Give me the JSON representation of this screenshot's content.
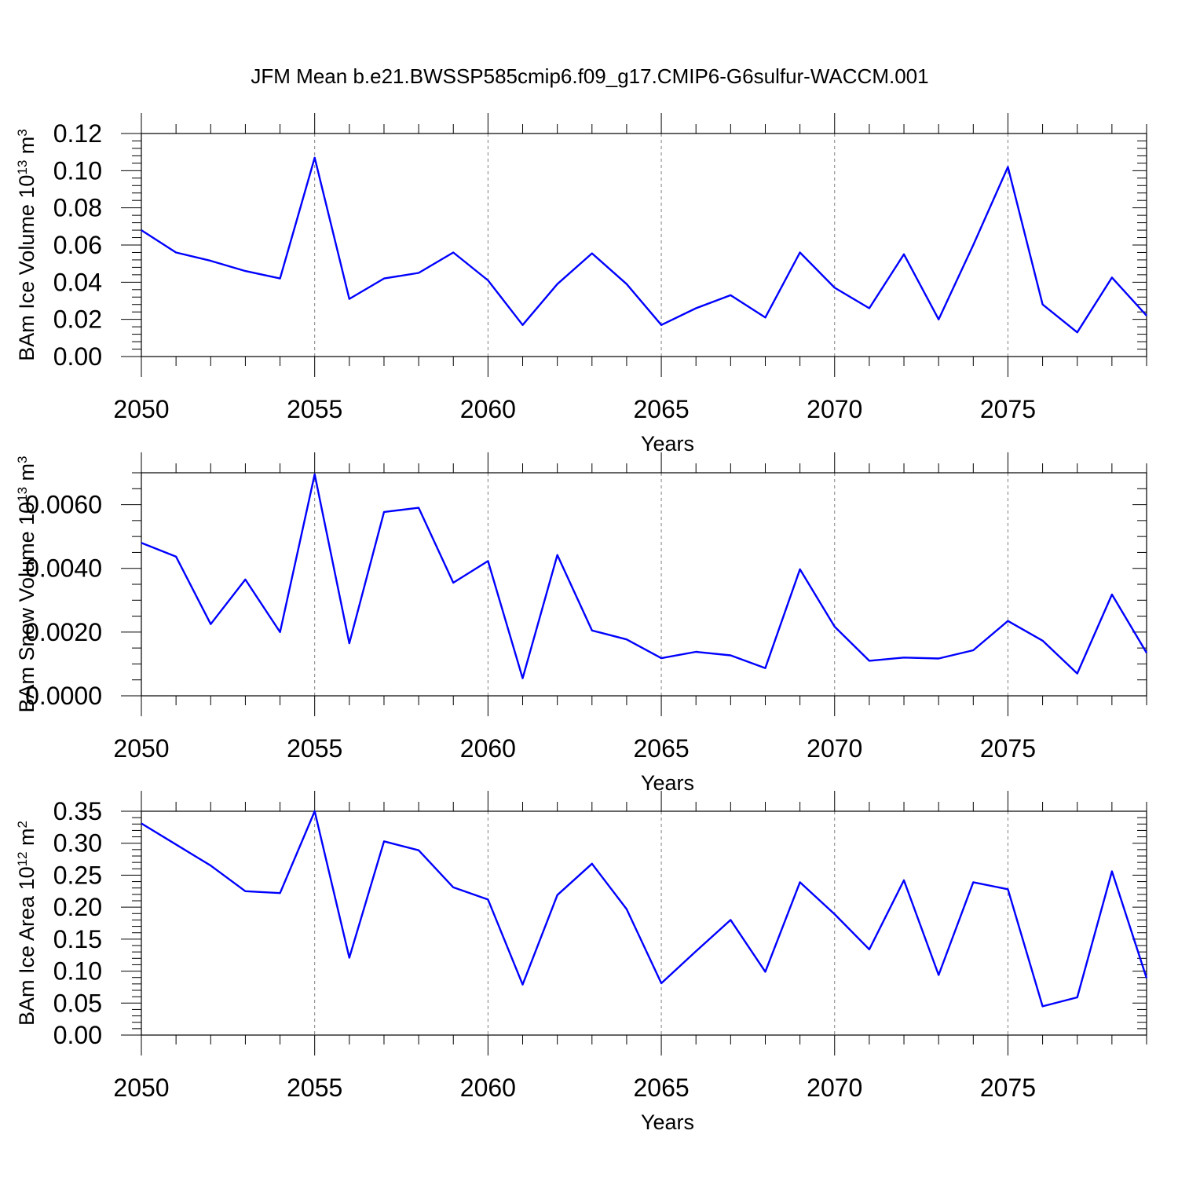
{
  "title": "JFM Mean b.e21.BWSSP585cmip6.f09_g17.CMIP6-G6sulfur-WACCM.001",
  "colors": {
    "line": "#0000ff",
    "axes": "#000000",
    "grid": "#808080"
  },
  "chart_data": [
    {
      "type": "line",
      "xlabel": "Years",
      "ylabel": {
        "text": "BAm Ice Volume 10",
        "exp": "13",
        "unit": " m",
        "unit_exp": "3"
      },
      "xlim": [
        2050,
        2079
      ],
      "ylim": [
        0,
        0.12
      ],
      "x_ticks": [
        2050,
        2055,
        2060,
        2065,
        2070,
        2075
      ],
      "x_tick_labels": [
        "2050",
        "2055",
        "2060",
        "2065",
        "2070",
        "2075"
      ],
      "y_ticks": [
        0,
        0.02,
        0.04,
        0.06,
        0.08,
        0.1,
        0.12
      ],
      "y_tick_labels": [
        "0.00",
        "0.02",
        "0.04",
        "0.06",
        "0.08",
        "0.10",
        "0.12"
      ],
      "y_minor_step": 0.004,
      "grid": "vertical dashed at major x ticks",
      "series": [
        {
          "name": "BAm Ice Volume",
          "x": [
            2050,
            2051,
            2052,
            2053,
            2054,
            2055,
            2056,
            2057,
            2058,
            2059,
            2060,
            2061,
            2062,
            2063,
            2064,
            2065,
            2066,
            2067,
            2068,
            2069,
            2070,
            2071,
            2072,
            2073,
            2074,
            2075,
            2076,
            2077,
            2078,
            2079
          ],
          "values": [
            0.068,
            0.056,
            0.0515,
            0.046,
            0.042,
            0.107,
            0.031,
            0.042,
            0.045,
            0.056,
            0.041,
            0.017,
            0.039,
            0.0555,
            0.039,
            0.017,
            0.026,
            0.033,
            0.021,
            0.056,
            0.037,
            0.026,
            0.055,
            0.02,
            0.06,
            0.102,
            0.028,
            0.013,
            0.0425,
            0.022
          ]
        }
      ]
    },
    {
      "type": "line",
      "xlabel": "Years",
      "ylabel": {
        "text": "BAm Snow Volume 10",
        "exp": "13",
        "unit": " m",
        "unit_exp": "3"
      },
      "xlim": [
        2050,
        2079
      ],
      "ylim": [
        0,
        0.007
      ],
      "x_ticks": [
        2050,
        2055,
        2060,
        2065,
        2070,
        2075
      ],
      "x_tick_labels": [
        "2050",
        "2055",
        "2060",
        "2065",
        "2070",
        "2075"
      ],
      "y_ticks": [
        0,
        0.002,
        0.004,
        0.006
      ],
      "y_tick_labels": [
        "0.0000",
        "0.0020",
        "0.0040",
        "0.0060"
      ],
      "y_minor_step": 0.0005,
      "grid": "vertical dashed at major x ticks",
      "series": [
        {
          "name": "BAm Snow Volume",
          "x": [
            2050,
            2051,
            2052,
            2053,
            2054,
            2055,
            2056,
            2057,
            2058,
            2059,
            2060,
            2061,
            2062,
            2063,
            2064,
            2065,
            2066,
            2067,
            2068,
            2069,
            2070,
            2071,
            2072,
            2073,
            2074,
            2075,
            2076,
            2077,
            2078,
            2079
          ],
          "values": [
            0.0048,
            0.00437,
            0.00225,
            0.00365,
            0.002,
            0.00695,
            0.00165,
            0.00577,
            0.0059,
            0.00355,
            0.00423,
            0.00055,
            0.00442,
            0.00205,
            0.00177,
            0.00118,
            0.00138,
            0.00127,
            0.00087,
            0.00397,
            0.00217,
            0.0011,
            0.0012,
            0.00117,
            0.00143,
            0.00235,
            0.00173,
            0.0007,
            0.00318,
            0.00135
          ]
        }
      ]
    },
    {
      "type": "line",
      "xlabel": "Years",
      "ylabel": {
        "text": "BAm Ice Area 10",
        "exp": "12",
        "unit": " m",
        "unit_exp": "2"
      },
      "xlim": [
        2050,
        2079
      ],
      "ylim": [
        0,
        0.35
      ],
      "x_ticks": [
        2050,
        2055,
        2060,
        2065,
        2070,
        2075
      ],
      "x_tick_labels": [
        "2050",
        "2055",
        "2060",
        "2065",
        "2070",
        "2075"
      ],
      "y_ticks": [
        0,
        0.05,
        0.1,
        0.15,
        0.2,
        0.25,
        0.3,
        0.35
      ],
      "y_tick_labels": [
        "0.00",
        "0.05",
        "0.10",
        "0.15",
        "0.20",
        "0.25",
        "0.30",
        "0.35"
      ],
      "y_minor_step": 0.01,
      "grid": "vertical dashed at major x ticks",
      "series": [
        {
          "name": "BAm Ice Area",
          "x": [
            2050,
            2051,
            2052,
            2053,
            2054,
            2055,
            2056,
            2057,
            2058,
            2059,
            2060,
            2061,
            2062,
            2063,
            2064,
            2065,
            2066,
            2067,
            2068,
            2069,
            2070,
            2071,
            2072,
            2073,
            2074,
            2075,
            2076,
            2077,
            2078,
            2079
          ],
          "values": [
            0.331,
            0.298,
            0.265,
            0.225,
            0.222,
            0.35,
            0.121,
            0.303,
            0.289,
            0.231,
            0.212,
            0.079,
            0.219,
            0.268,
            0.197,
            0.081,
            0.131,
            0.18,
            0.099,
            0.239,
            0.189,
            0.134,
            0.242,
            0.094,
            0.239,
            0.228,
            0.045,
            0.059,
            0.256,
            0.089
          ]
        }
      ]
    }
  ]
}
